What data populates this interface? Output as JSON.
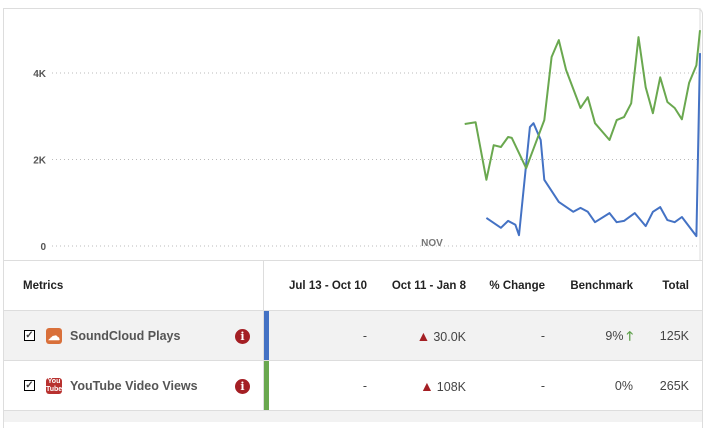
{
  "chart_data": {
    "type": "line",
    "x_tick_labels": [
      "NOV"
    ],
    "y_tick_labels": [
      "0",
      "2K",
      "4K"
    ],
    "ylim": [
      0,
      5000
    ],
    "xlim": [
      "Jul 13",
      "Jan 8"
    ],
    "grid": "horizontal dotted",
    "series": [
      {
        "color": "#4472c4",
        "points": [
          [
            "Nov 10",
            650
          ],
          [
            "Nov 14",
            420
          ],
          [
            "Nov 16",
            580
          ],
          [
            "Nov 18",
            490
          ],
          [
            "Nov 19",
            250
          ],
          [
            "Nov 22",
            2750
          ],
          [
            "Nov 23",
            2840
          ],
          [
            "Nov 25",
            2450
          ],
          [
            "Nov 26",
            1530
          ],
          [
            "Nov 30",
            1020
          ],
          [
            "Dec 4",
            790
          ],
          [
            "Dec 6",
            880
          ],
          [
            "Dec 8",
            790
          ],
          [
            "Dec 10",
            550
          ],
          [
            "Dec 14",
            760
          ],
          [
            "Dec 16",
            550
          ],
          [
            "Dec 18",
            580
          ],
          [
            "Dec 21",
            760
          ],
          [
            "Dec 24",
            460
          ],
          [
            "Dec 26",
            790
          ],
          [
            "Dec 28",
            900
          ],
          [
            "Dec 30",
            600
          ],
          [
            "Jan 1",
            550
          ],
          [
            "Jan 3",
            670
          ],
          [
            "Jan 7",
            230
          ],
          [
            "Jan 8",
            4460
          ]
        ]
      },
      {
        "color": "#6aa84f",
        "points": [
          [
            "Nov 4",
            2820
          ],
          [
            "Nov 7",
            2860
          ],
          [
            "Nov 10",
            1530
          ],
          [
            "Nov 12",
            2330
          ],
          [
            "Nov 14",
            2290
          ],
          [
            "Nov 16",
            2520
          ],
          [
            "Nov 17",
            2500
          ],
          [
            "Nov 21",
            1800
          ],
          [
            "Nov 26",
            2910
          ],
          [
            "Nov 28",
            4370
          ],
          [
            "Nov 30",
            4760
          ],
          [
            "Dec 2",
            4070
          ],
          [
            "Dec 6",
            3190
          ],
          [
            "Dec 8",
            3440
          ],
          [
            "Dec 10",
            2840
          ],
          [
            "Dec 14",
            2450
          ],
          [
            "Dec 16",
            2910
          ],
          [
            "Dec 18",
            2980
          ],
          [
            "Dec 20",
            3300
          ],
          [
            "Dec 22",
            4830
          ],
          [
            "Dec 24",
            3670
          ],
          [
            "Dec 26",
            3070
          ],
          [
            "Dec 28",
            3900
          ],
          [
            "Dec 30",
            3330
          ],
          [
            "Jan 1",
            3190
          ],
          [
            "Jan 3",
            2930
          ],
          [
            "Jan 5",
            3770
          ],
          [
            "Jan 7",
            4180
          ],
          [
            "Jan 8",
            4990
          ]
        ]
      }
    ]
  },
  "table": {
    "headers": [
      "Metrics",
      "Jul 13 - Oct 10",
      "Oct 11 - Jan 8",
      "% Change",
      "Benchmark",
      "Total"
    ],
    "rows": [
      {
        "name": "SoundCloud Plays",
        "icon": "soundcloud-icon",
        "color": "#4472c4",
        "prev": "-",
        "curr": "30.0K",
        "change": "-",
        "benchmark": "9%",
        "total": "125K",
        "check": "✓",
        "icon_text": "☁"
      },
      {
        "name": "YouTube Video Views",
        "icon": "youtube-icon",
        "color": "#6aa84f",
        "prev": "-",
        "curr": "108K",
        "change": "-",
        "benchmark": "0%",
        "total": "265K",
        "check": "✓",
        "icon_text": "You Tube"
      }
    ]
  }
}
